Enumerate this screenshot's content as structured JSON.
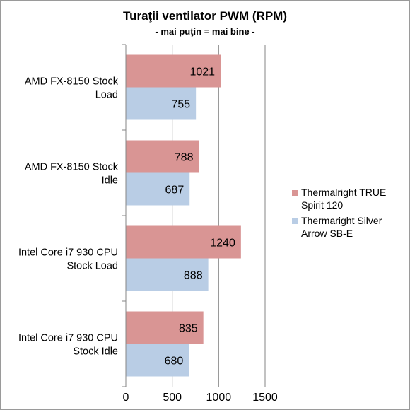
{
  "chart_data": {
    "type": "bar",
    "orientation": "horizontal",
    "title": "Turaţii ventilator PWM (RPM)",
    "subtitle": "- mai puţin = mai bine -",
    "categories": [
      [
        "AMD FX-8150 Stock",
        "Load"
      ],
      [
        "AMD FX-8150 Stock",
        "Idle"
      ],
      [
        "Intel Core i7 930 CPU",
        "Stock Load"
      ],
      [
        "Intel Core i7 930 CPU",
        "Stock Idle"
      ]
    ],
    "series": [
      {
        "name": [
          "Thermalright TRUE",
          "Spirit 120"
        ],
        "color": "#d99594",
        "values": [
          1021,
          788,
          1240,
          835
        ]
      },
      {
        "name": [
          "Thermaright Silver",
          "Arrow SB-E"
        ],
        "color": "#b9cde5",
        "values": [
          755,
          687,
          888,
          680
        ]
      }
    ],
    "xlim": [
      0,
      1500
    ],
    "xticks": [
      0,
      500,
      1000,
      1500
    ],
    "grid": true,
    "legend": "right",
    "data_labels": true
  }
}
